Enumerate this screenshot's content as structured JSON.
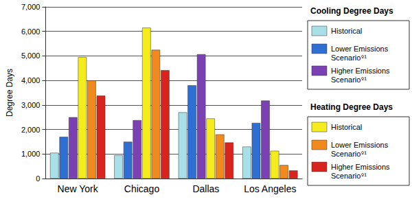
{
  "chart_data": {
    "type": "bar",
    "y_label": "Degree Days",
    "categories": [
      "New York",
      "Chicago",
      "Dallas",
      "Los Angeles"
    ],
    "ylim": [
      0,
      7000
    ],
    "yticks": [
      0,
      1000,
      2000,
      3000,
      4000,
      5000,
      6000,
      7000
    ],
    "grid": true,
    "series_groups": [
      {
        "title": "Cooling Degree Days",
        "series": [
          {
            "name": "Historical",
            "color": "#a9dfe6",
            "values": [
              1050,
              950,
              2700,
              1300
            ]
          },
          {
            "name": "Lower Emissions Scenario⁹¹",
            "color": "#2f6ed2",
            "values": [
              1700,
              1500,
              3800,
              2270
            ]
          },
          {
            "name": "Higher Emissions Scenario⁹¹",
            "color": "#7b41b3",
            "values": [
              2500,
              2380,
              5070,
              3180
            ]
          }
        ]
      },
      {
        "title": "Heating Degree Days",
        "series": [
          {
            "name": "Historical",
            "color": "#f4ec1c",
            "values": [
              4950,
              6150,
              2450,
              1130
            ]
          },
          {
            "name": "Lower Emissions Scenario⁹¹",
            "color": "#f08a1e",
            "values": [
              4000,
              5250,
              1800,
              550
            ]
          },
          {
            "name": "Higher Emissions Scenario⁹¹",
            "color": "#d8241d",
            "values": [
              3380,
              4420,
              1470,
              330
            ]
          }
        ]
      }
    ]
  }
}
